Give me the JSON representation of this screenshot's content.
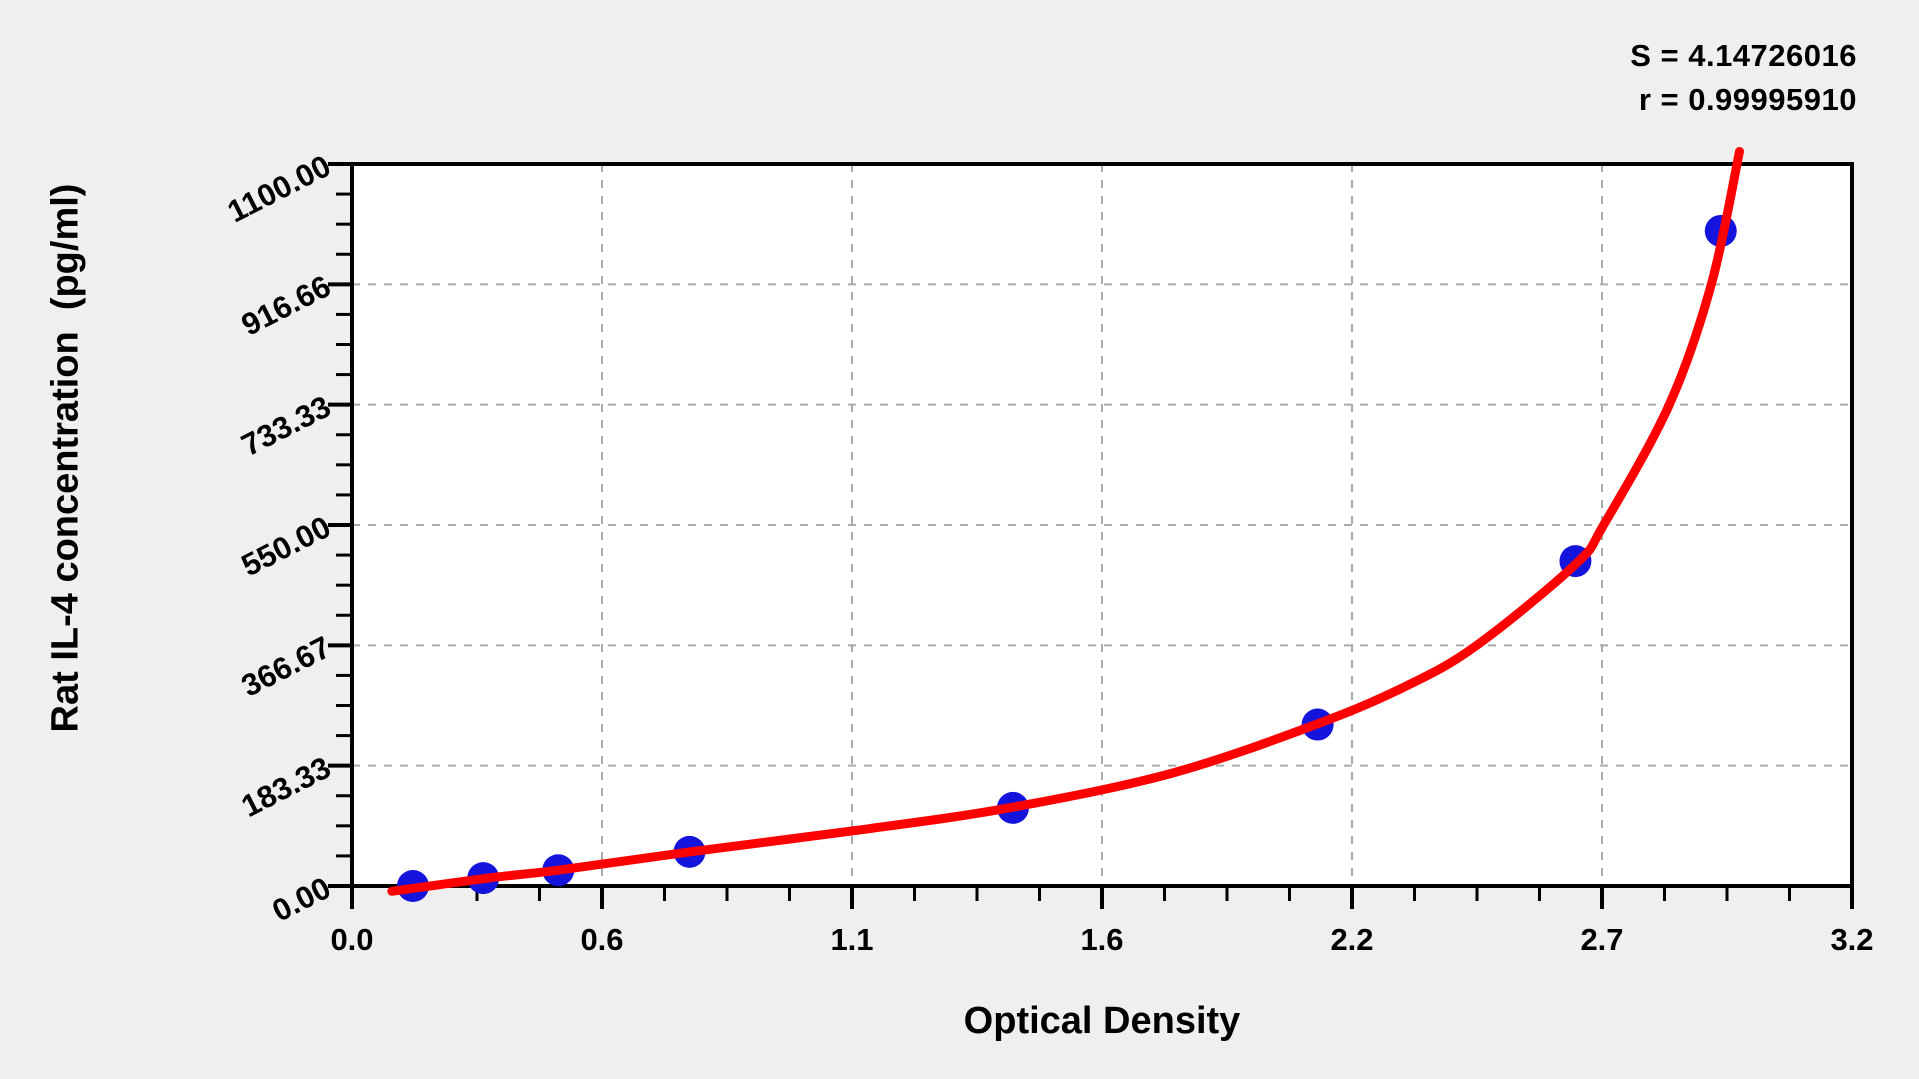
{
  "stats": {
    "s_label": "S = 4.14726016",
    "r_label": "r = 0.99995910"
  },
  "chart_data": {
    "type": "scatter",
    "title": "",
    "xlabel": "Optical Density",
    "ylabel": "Rat IL-4 concentration  (pg/ml)",
    "xlim": [
      0,
      3.2
    ],
    "ylim": [
      0,
      1100
    ],
    "x_tick_labels": [
      "0.0",
      "0.6",
      "1.1",
      "1.6",
      "2.2",
      "2.7",
      "3.2"
    ],
    "y_tick_labels": [
      "0.00",
      "183.33",
      "366.67",
      "550.00",
      "733.33",
      "916.66",
      "1100.00"
    ],
    "minor_ticks_per_major": 3,
    "grid": {
      "show": true,
      "style": "dashed",
      "color": "#ababab"
    },
    "legend": {
      "show": false
    },
    "annotations": [
      "S = 4.14726016",
      "r = 0.99995910"
    ],
    "series": [
      {
        "name": "standard-points",
        "kind": "scatter",
        "color": "#1414dd",
        "marker_radius": 16,
        "points": [
          [
            0.13,
            0
          ],
          [
            0.28,
            12
          ],
          [
            0.44,
            24
          ],
          [
            0.72,
            52
          ],
          [
            1.41,
            119
          ],
          [
            2.06,
            246
          ],
          [
            2.61,
            495
          ],
          [
            2.92,
            998
          ]
        ]
      },
      {
        "name": "fitted-curve",
        "kind": "line",
        "color": "#ff0000",
        "stroke_width": 9,
        "points": [
          [
            0.085,
            -8
          ],
          [
            0.3,
            13
          ],
          [
            0.44,
            24
          ],
          [
            0.72,
            52
          ],
          [
            1.1,
            87
          ],
          [
            1.41,
            120
          ],
          [
            1.75,
            172
          ],
          [
            2.06,
            247
          ],
          [
            2.25,
            305
          ],
          [
            2.4,
            367
          ],
          [
            2.61,
            490
          ],
          [
            2.67,
            550
          ],
          [
            2.81,
            733
          ],
          [
            2.9,
            917
          ],
          [
            2.96,
            1119
          ]
        ]
      }
    ]
  },
  "colors": {
    "background": "#efefef",
    "plot_background": "#ffffff",
    "axis": "#000000",
    "text": "#000000"
  }
}
